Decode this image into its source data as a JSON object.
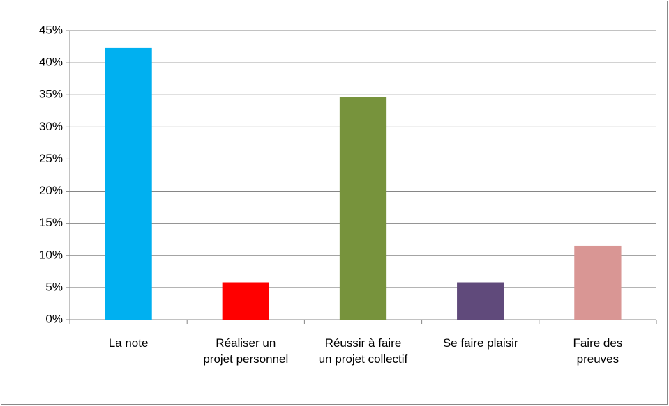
{
  "chart_data": {
    "type": "bar",
    "categories": [
      "La note",
      "Réaliser un projet personnel",
      "Réussir à faire un projet collectif",
      "Se faire plaisir",
      "Faire des preuves"
    ],
    "values": [
      42.3,
      5.8,
      34.6,
      5.8,
      11.5
    ],
    "colors": [
      "#00b0f0",
      "#ff0000",
      "#77933c",
      "#604a7b",
      "#d99694"
    ],
    "ylim": [
      0,
      45
    ],
    "yticks": [
      {
        "value": 0,
        "label": "0%"
      },
      {
        "value": 5,
        "label": "5%"
      },
      {
        "value": 10,
        "label": "10%"
      },
      {
        "value": 15,
        "label": "15%"
      },
      {
        "value": 20,
        "label": "20%"
      },
      {
        "value": 25,
        "label": "25%"
      },
      {
        "value": 30,
        "label": "30%"
      },
      {
        "value": 35,
        "label": "35%"
      },
      {
        "value": 40,
        "label": "40%"
      },
      {
        "value": 45,
        "label": "45%"
      }
    ],
    "grid": true
  }
}
